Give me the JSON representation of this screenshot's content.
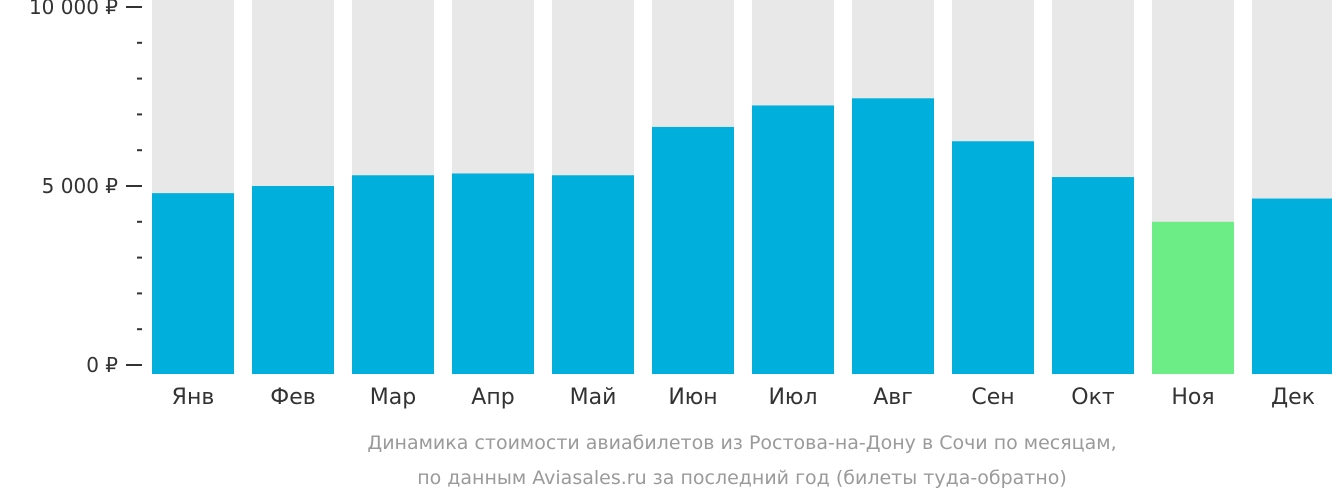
{
  "chart_data": {
    "type": "bar",
    "title": "",
    "xlabel": "",
    "ylabel": "",
    "ylim": [
      0,
      10000
    ],
    "y_ticks": [
      {
        "value": 0,
        "label": "0 ₽"
      },
      {
        "value": 5000,
        "label": "5 000 ₽"
      },
      {
        "value": 10000,
        "label": "10 000 ₽"
      }
    ],
    "y_minor_step": 1000,
    "categories": [
      "Янв",
      "Фев",
      "Мар",
      "Апр",
      "Май",
      "Июн",
      "Июл",
      "Авг",
      "Сен",
      "Окт",
      "Ноя",
      "Дек"
    ],
    "values": [
      4800,
      5000,
      5300,
      5350,
      5300,
      6650,
      7250,
      7450,
      6250,
      5250,
      4000,
      4650
    ],
    "highlight_index": 10,
    "grid": false,
    "legend": "none"
  },
  "colors": {
    "bar": "#00afdc",
    "bar_highlight": "#6ced86",
    "bar_background": "#e8e8e8",
    "axis": "#333333",
    "caption": "#9a9a9a"
  },
  "caption": {
    "line1": "Динамика стоимости авиабилетов из Ростова-на-Дону в Сочи по месяцам,",
    "line2": "по данным Aviasales.ru за последний год (билеты туда-обратно)"
  }
}
